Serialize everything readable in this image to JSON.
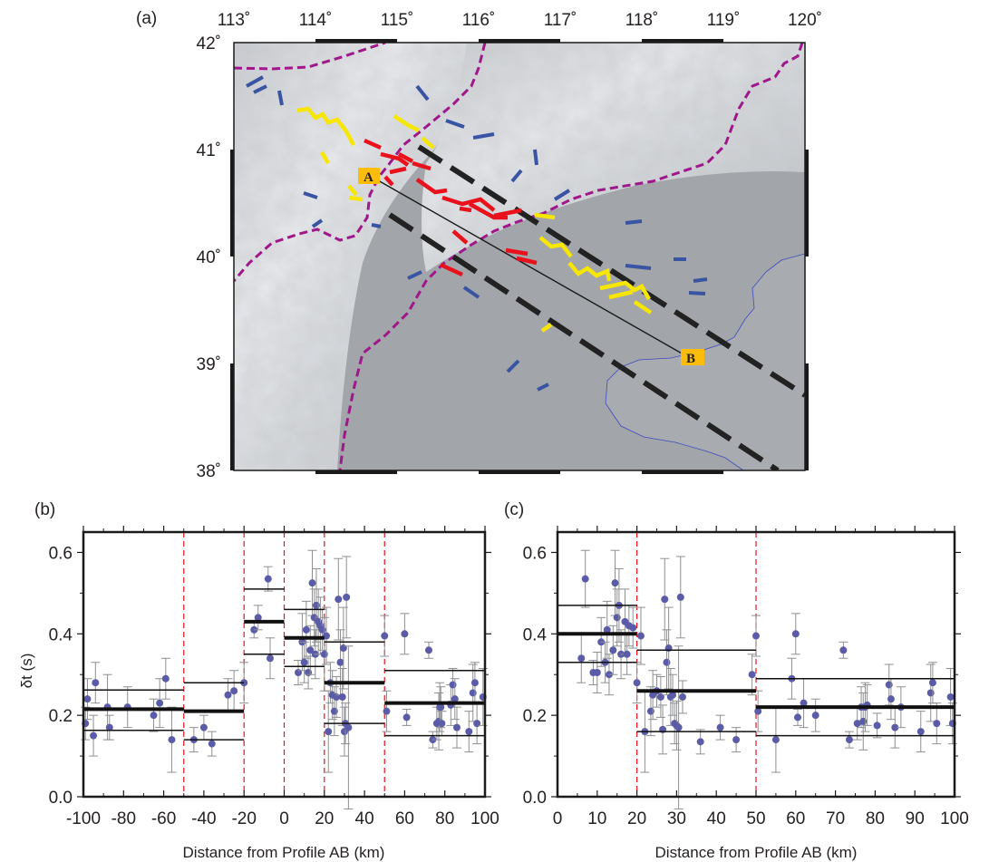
{
  "chart_data": [
    {
      "panel": "(a)",
      "type": "map",
      "lon_ticks": [
        "113˚",
        "114˚",
        "115˚",
        "116˚",
        "117˚",
        "118˚",
        "119˚",
        "120˚"
      ],
      "lat_ticks": [
        "42˚",
        "41˚",
        "40˚",
        "39˚",
        "38˚"
      ],
      "xlim": [
        113,
        120
      ],
      "ylim": [
        38,
        42
      ],
      "profile": {
        "start_label": "A",
        "start": [
          114.75,
          40.83
        ],
        "end_label": "B",
        "end": [
          118.45,
          39.07
        ]
      },
      "colors": {
        "boundary": "#a0178a",
        "red_segments": "#e8111c",
        "yellow_segments": "#f7e600",
        "blue_segments": "#3a54a4",
        "swath": "#222222",
        "coastline": "#3b4cc0"
      }
    },
    {
      "panel": "(b)",
      "type": "scatter",
      "xlabel": "Distance from Profile AB (km)",
      "ylabel": "δt (s)",
      "xlim": [
        -100,
        100
      ],
      "ylim": [
        0,
        0.65
      ],
      "x_ticks": [
        "-100",
        "-80",
        "-60",
        "-40",
        "-20",
        "0",
        "20",
        "40",
        "60",
        "80",
        "100"
      ],
      "y_ticks": [
        "0.0",
        "0.2",
        "0.4",
        "0.6"
      ],
      "bin_edges": [
        -50,
        -20,
        0,
        20,
        50
      ],
      "bins": [
        {
          "x0": -100,
          "x1": -50,
          "mean": 0.215,
          "lo": 0.163,
          "hi": 0.262
        },
        {
          "x0": -50,
          "x1": -20,
          "mean": 0.21,
          "lo": 0.14,
          "hi": 0.28
        },
        {
          "x0": -20,
          "x1": 0,
          "mean": 0.43,
          "lo": 0.35,
          "hi": 0.51
        },
        {
          "x0": 0,
          "x1": 20,
          "mean": 0.39,
          "lo": 0.32,
          "hi": 0.46
        },
        {
          "x0": 20,
          "x1": 50,
          "mean": 0.28,
          "lo": 0.18,
          "hi": 0.38
        },
        {
          "x0": 50,
          "x1": 100,
          "mean": 0.23,
          "lo": 0.15,
          "hi": 0.31
        }
      ],
      "points": [
        {
          "x": -99,
          "y": 0.18,
          "e": 0.04
        },
        {
          "x": -98,
          "y": 0.24,
          "e": 0.05
        },
        {
          "x": -95,
          "y": 0.15,
          "e": 0.05
        },
        {
          "x": -94,
          "y": 0.28,
          "e": 0.05
        },
        {
          "x": -88,
          "y": 0.22,
          "e": 0.08
        },
        {
          "x": -87,
          "y": 0.17,
          "e": 0.03
        },
        {
          "x": -78,
          "y": 0.22,
          "e": 0.05
        },
        {
          "x": -65,
          "y": 0.2,
          "e": 0.04
        },
        {
          "x": -62,
          "y": 0.23,
          "e": 0.06
        },
        {
          "x": -59,
          "y": 0.29,
          "e": 0.05
        },
        {
          "x": -56,
          "y": 0.14,
          "e": 0.08
        },
        {
          "x": -45,
          "y": 0.14,
          "e": 0.03
        },
        {
          "x": -40,
          "y": 0.17,
          "e": 0.03
        },
        {
          "x": -36,
          "y": 0.13,
          "e": 0.03
        },
        {
          "x": -28,
          "y": 0.25,
          "e": 0.04
        },
        {
          "x": -25,
          "y": 0.26,
          "e": 0.05
        },
        {
          "x": -20,
          "y": 0.28,
          "e": 0.05
        },
        {
          "x": -15,
          "y": 0.41,
          "e": 0.02
        },
        {
          "x": -13,
          "y": 0.44,
          "e": 0.03
        },
        {
          "x": -8,
          "y": 0.535,
          "e": 0.03
        },
        {
          "x": -7,
          "y": 0.34,
          "e": 0.05
        },
        {
          "x": 7,
          "y": 0.305,
          "e": 0.03
        },
        {
          "x": 9,
          "y": 0.38,
          "e": 0.07
        },
        {
          "x": 10,
          "y": 0.33,
          "e": 0.05
        },
        {
          "x": 11,
          "y": 0.41,
          "e": 0.07
        },
        {
          "x": 12,
          "y": 0.305,
          "e": 0.04
        },
        {
          "x": 13,
          "y": 0.36,
          "e": 0.06
        },
        {
          "x": 14,
          "y": 0.525,
          "e": 0.08
        },
        {
          "x": 15,
          "y": 0.44,
          "e": 0.07
        },
        {
          "x": 15.5,
          "y": 0.35,
          "e": 0.06
        },
        {
          "x": 16,
          "y": 0.47,
          "e": 0.09
        },
        {
          "x": 17,
          "y": 0.43,
          "e": 0.08
        },
        {
          "x": 18,
          "y": 0.42,
          "e": 0.07
        },
        {
          "x": 19,
          "y": 0.41,
          "e": 0.05
        },
        {
          "x": 20,
          "y": 0.35,
          "e": 0.09
        },
        {
          "x": 21,
          "y": 0.395,
          "e": 0.07
        },
        {
          "x": 22,
          "y": 0.16,
          "e": 0.1
        },
        {
          "x": 23,
          "y": 0.28,
          "e": 0.05
        },
        {
          "x": 24,
          "y": 0.25,
          "e": 0.06
        },
        {
          "x": 25,
          "y": 0.21,
          "e": 0.06
        },
        {
          "x": 26,
          "y": 0.245,
          "e": 0.05
        },
        {
          "x": 27,
          "y": 0.485,
          "e": 0.1
        },
        {
          "x": 28,
          "y": 0.33,
          "e": 0.08
        },
        {
          "x": 29,
          "y": 0.245,
          "e": 0.07
        },
        {
          "x": 29.5,
          "y": 0.365,
          "e": 0.1
        },
        {
          "x": 30,
          "y": 0.16,
          "e": 0.06
        },
        {
          "x": 30.5,
          "y": 0.18,
          "e": 0.05
        },
        {
          "x": 31,
          "y": 0.49,
          "e": 0.1
        },
        {
          "x": 32,
          "y": 0.17,
          "e": 0.2
        },
        {
          "x": 50,
          "y": 0.395,
          "e": 0.05
        },
        {
          "x": 51,
          "y": 0.21,
          "e": 0.05
        },
        {
          "x": 60,
          "y": 0.4,
          "e": 0.05
        },
        {
          "x": 61,
          "y": 0.195,
          "e": 0.02
        },
        {
          "x": 72,
          "y": 0.36,
          "e": 0.02
        },
        {
          "x": 74,
          "y": 0.14,
          "e": 0.02
        },
        {
          "x": 76,
          "y": 0.18,
          "e": 0.04
        },
        {
          "x": 77,
          "y": 0.185,
          "e": 0.07
        },
        {
          "x": 77.5,
          "y": 0.22,
          "e": 0.06
        },
        {
          "x": 78,
          "y": 0.22,
          "e": 0.05
        },
        {
          "x": 78.5,
          "y": 0.18,
          "e": 0.03
        },
        {
          "x": 83,
          "y": 0.225,
          "e": 0.05
        },
        {
          "x": 84,
          "y": 0.275,
          "e": 0.04
        },
        {
          "x": 85,
          "y": 0.24,
          "e": 0.05
        },
        {
          "x": 86,
          "y": 0.17,
          "e": 0.05
        },
        {
          "x": 92,
          "y": 0.16,
          "e": 0.05
        },
        {
          "x": 94,
          "y": 0.255,
          "e": 0.07
        },
        {
          "x": 95,
          "y": 0.28,
          "e": 0.05
        },
        {
          "x": 96,
          "y": 0.18,
          "e": 0.05
        },
        {
          "x": 99,
          "y": 0.245,
          "e": 0.07
        }
      ]
    },
    {
      "panel": "(c)",
      "type": "scatter",
      "xlabel": "Distance from Profile AB (km)",
      "ylabel": "",
      "xlim": [
        0,
        100
      ],
      "ylim": [
        0,
        0.65
      ],
      "x_ticks": [
        "0",
        "10",
        "20",
        "30",
        "40",
        "50",
        "60",
        "70",
        "80",
        "90",
        "100"
      ],
      "y_ticks": [
        "0.0",
        "0.2",
        "0.4",
        "0.6"
      ],
      "bin_edges": [
        0,
        20,
        50
      ],
      "bins": [
        {
          "x0": 0,
          "x1": 20,
          "mean": 0.4,
          "lo": 0.33,
          "hi": 0.47
        },
        {
          "x0": 20,
          "x1": 50,
          "mean": 0.26,
          "lo": 0.16,
          "hi": 0.36
        },
        {
          "x0": 50,
          "x1": 100,
          "mean": 0.22,
          "lo": 0.15,
          "hi": 0.29
        }
      ],
      "points": [
        {
          "x": 6,
          "y": 0.34,
          "e": 0.06
        },
        {
          "x": 7,
          "y": 0.535,
          "e": 0.07
        },
        {
          "x": 9,
          "y": 0.305,
          "e": 0.03
        },
        {
          "x": 10,
          "y": 0.305,
          "e": 0.05
        },
        {
          "x": 11,
          "y": 0.38,
          "e": 0.06
        },
        {
          "x": 12,
          "y": 0.33,
          "e": 0.05
        },
        {
          "x": 12.5,
          "y": 0.41,
          "e": 0.07
        },
        {
          "x": 13,
          "y": 0.3,
          "e": 0.05
        },
        {
          "x": 14,
          "y": 0.36,
          "e": 0.06
        },
        {
          "x": 14.5,
          "y": 0.525,
          "e": 0.08
        },
        {
          "x": 15,
          "y": 0.44,
          "e": 0.07
        },
        {
          "x": 15.5,
          "y": 0.47,
          "e": 0.09
        },
        {
          "x": 16,
          "y": 0.35,
          "e": 0.06
        },
        {
          "x": 17,
          "y": 0.43,
          "e": 0.08
        },
        {
          "x": 17.5,
          "y": 0.35,
          "e": 0.05
        },
        {
          "x": 18,
          "y": 0.42,
          "e": 0.05
        },
        {
          "x": 19,
          "y": 0.415,
          "e": 0.05
        },
        {
          "x": 20,
          "y": 0.28,
          "e": 0.05
        },
        {
          "x": 21,
          "y": 0.395,
          "e": 0.07
        },
        {
          "x": 22,
          "y": 0.16,
          "e": 0.1
        },
        {
          "x": 23.5,
          "y": 0.21,
          "e": 0.06
        },
        {
          "x": 24,
          "y": 0.25,
          "e": 0.06
        },
        {
          "x": 25,
          "y": 0.26,
          "e": 0.04
        },
        {
          "x": 26,
          "y": 0.245,
          "e": 0.05
        },
        {
          "x": 26.5,
          "y": 0.165,
          "e": 0.06
        },
        {
          "x": 27,
          "y": 0.485,
          "e": 0.1
        },
        {
          "x": 27.5,
          "y": 0.33,
          "e": 0.08
        },
        {
          "x": 28,
          "y": 0.365,
          "e": 0.1
        },
        {
          "x": 28.5,
          "y": 0.245,
          "e": 0.07
        },
        {
          "x": 29,
          "y": 0.25,
          "e": 0.05
        },
        {
          "x": 29.5,
          "y": 0.18,
          "e": 0.05
        },
        {
          "x": 30,
          "y": 0.175,
          "e": 0.06
        },
        {
          "x": 30.5,
          "y": 0.17,
          "e": 0.2
        },
        {
          "x": 31,
          "y": 0.49,
          "e": 0.1
        },
        {
          "x": 31.5,
          "y": 0.245,
          "e": 0.04
        },
        {
          "x": 36,
          "y": 0.135,
          "e": 0.03
        },
        {
          "x": 41,
          "y": 0.17,
          "e": 0.03
        },
        {
          "x": 45,
          "y": 0.14,
          "e": 0.03
        },
        {
          "x": 49,
          "y": 0.3,
          "e": 0.05
        },
        {
          "x": 50,
          "y": 0.395,
          "e": 0.05
        },
        {
          "x": 50.5,
          "y": 0.21,
          "e": 0.05
        },
        {
          "x": 55,
          "y": 0.14,
          "e": 0.08
        },
        {
          "x": 59,
          "y": 0.29,
          "e": 0.05
        },
        {
          "x": 60,
          "y": 0.4,
          "e": 0.05
        },
        {
          "x": 60.5,
          "y": 0.195,
          "e": 0.02
        },
        {
          "x": 62,
          "y": 0.23,
          "e": 0.06
        },
        {
          "x": 65,
          "y": 0.2,
          "e": 0.04
        },
        {
          "x": 72,
          "y": 0.36,
          "e": 0.02
        },
        {
          "x": 73.5,
          "y": 0.14,
          "e": 0.02
        },
        {
          "x": 75.5,
          "y": 0.18,
          "e": 0.04
        },
        {
          "x": 76.5,
          "y": 0.22,
          "e": 0.05
        },
        {
          "x": 77,
          "y": 0.185,
          "e": 0.07
        },
        {
          "x": 77.5,
          "y": 0.22,
          "e": 0.06
        },
        {
          "x": 78,
          "y": 0.225,
          "e": 0.05
        },
        {
          "x": 80.5,
          "y": 0.175,
          "e": 0.03
        },
        {
          "x": 83.5,
          "y": 0.275,
          "e": 0.05
        },
        {
          "x": 84,
          "y": 0.24,
          "e": 0.05
        },
        {
          "x": 85,
          "y": 0.17,
          "e": 0.05
        },
        {
          "x": 86.5,
          "y": 0.22,
          "e": 0.05
        },
        {
          "x": 91.5,
          "y": 0.16,
          "e": 0.05
        },
        {
          "x": 94,
          "y": 0.255,
          "e": 0.07
        },
        {
          "x": 94.5,
          "y": 0.28,
          "e": 0.05
        },
        {
          "x": 95.5,
          "y": 0.18,
          "e": 0.05
        },
        {
          "x": 99,
          "y": 0.245,
          "e": 0.07
        },
        {
          "x": 99.5,
          "y": 0.18,
          "e": 0.05
        }
      ]
    }
  ]
}
